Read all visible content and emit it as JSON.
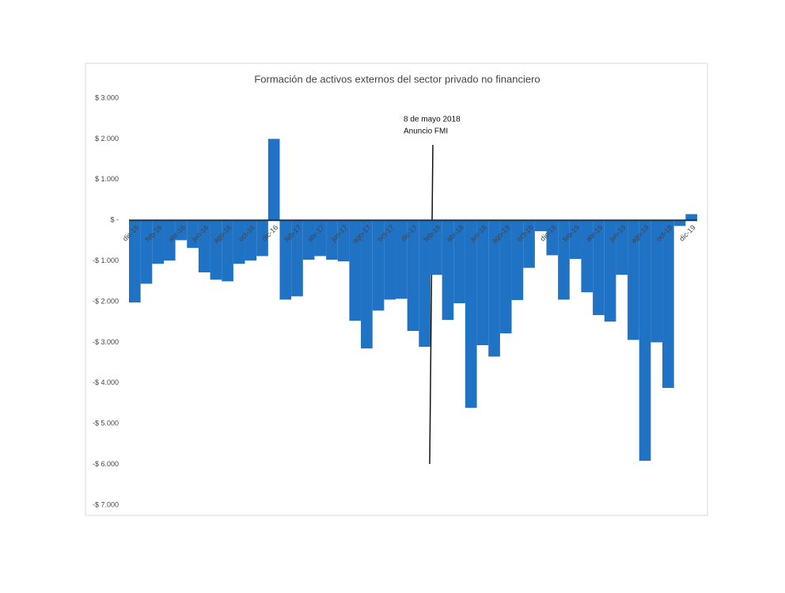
{
  "chart_data": {
    "type": "bar",
    "title": "Formación  de activos externos del sector privado no financiero",
    "annotation": [
      "8 de mayo 2018",
      "Anuncio FMI"
    ],
    "color": "#1f72c4",
    "categories": [
      "dic-15",
      null,
      "feb-16",
      null,
      "abr-16",
      null,
      "jun-16",
      null,
      "ago-16",
      null,
      "oct-16",
      null,
      "dic-16",
      null,
      "feb-17",
      null,
      "abr-17",
      null,
      "jun-17",
      null,
      "ago-17",
      null,
      "oct-17",
      null,
      "dic-17",
      null,
      "feb-18",
      null,
      "abr-18",
      null,
      "jun-18",
      null,
      "ago-18",
      null,
      "oct-18",
      null,
      "dic-18",
      null,
      "feb-19",
      null,
      "abr-19",
      null,
      "jun-19",
      null,
      "ago-19",
      null,
      "oct-19",
      null,
      "dic-19"
    ],
    "values": [
      -2020,
      -1560,
      -1070,
      -990,
      -490,
      -680,
      -1280,
      -1460,
      -1500,
      -1070,
      -990,
      -880,
      2000,
      -1950,
      -1870,
      -970,
      -880,
      -970,
      -1010,
      -2470,
      -3150,
      -2220,
      -1950,
      -1930,
      -2720,
      -3110,
      -1340,
      -2450,
      -2040,
      -4610,
      -3070,
      -3350,
      -2780,
      -1960,
      -1170,
      -270,
      -860,
      -1950,
      -950,
      -1770,
      -2330,
      -2490,
      -1340,
      -2940,
      -5910,
      -3000,
      -4120,
      -140,
      150
    ],
    "ylim": [
      -7000,
      3000
    ],
    "yticks": [
      {
        "value": 3000,
        "label": "$ 3.000"
      },
      {
        "value": 2000,
        "label": "$ 2.000"
      },
      {
        "value": 1000,
        "label": "$ 1.000"
      },
      {
        "value": 0,
        "label": "$ -"
      },
      {
        "value": -1000,
        "label": "-$ 1.000"
      },
      {
        "value": -2000,
        "label": "-$ 2.000"
      },
      {
        "value": -3000,
        "label": "-$ 3.000"
      },
      {
        "value": -4000,
        "label": "-$ 4.000"
      },
      {
        "value": -5000,
        "label": "-$ 5.000"
      },
      {
        "value": -6000,
        "label": "-$ 6.000"
      },
      {
        "value": -7000,
        "label": "-$ 7.000"
      }
    ]
  }
}
